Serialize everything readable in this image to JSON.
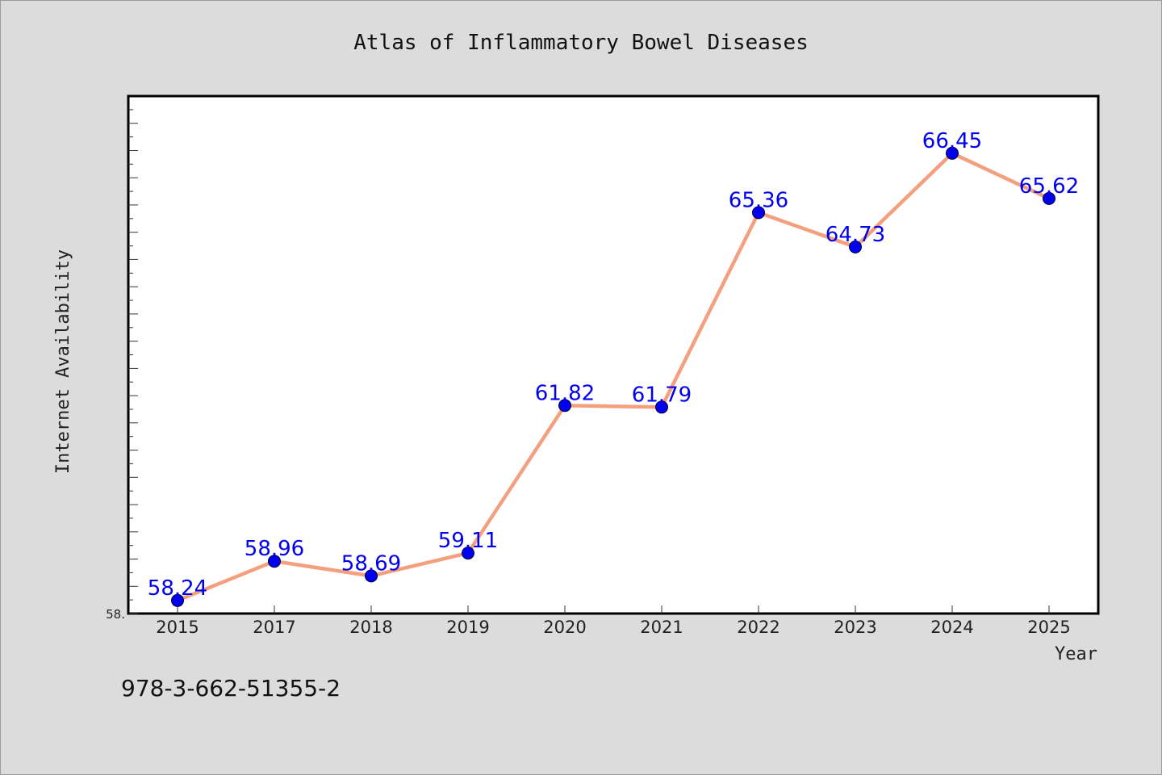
{
  "footer_text": "978-3-662-51355-2",
  "y_min_tick_label": "58.",
  "colors": {
    "background": "#dcdcdc",
    "plot_background": "#ffffff",
    "line": "#f4a07f",
    "marker": "#0000ee",
    "data_label": "#0000ee"
  },
  "chart_data": {
    "type": "line",
    "title": "Atlas of Inflammatory Bowel Diseases",
    "xlabel": "Year",
    "ylabel": "Internet Availability",
    "categories": [
      "2015",
      "2017",
      "2018",
      "2019",
      "2020",
      "2021",
      "2022",
      "2023",
      "2024",
      "2025"
    ],
    "series": [
      {
        "values": [
          58.24,
          58.96,
          58.69,
          59.11,
          61.82,
          61.79,
          65.36,
          64.73,
          66.45,
          65.62
        ],
        "labels": [
          "58.24",
          "58.96",
          "58.69",
          "59.11",
          "61.82",
          "61.79",
          "65.36",
          "64.73",
          "66.45",
          "65.62"
        ]
      }
    ],
    "ylim": [
      58.0,
      67.5
    ],
    "grid": false,
    "legend": "none"
  }
}
